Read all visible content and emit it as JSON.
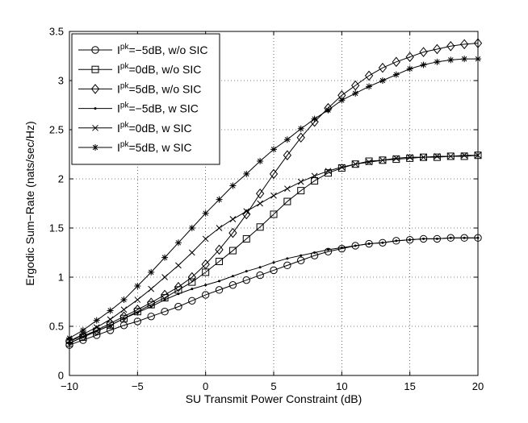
{
  "chart_data": {
    "type": "line",
    "xlabel": "SU Transmit Power Constraint (dB)",
    "ylabel": "Ergodic Sum−Rate (nats/sec/Hz)",
    "xlim": [
      -10,
      20
    ],
    "ylim": [
      0,
      3.5
    ],
    "xticks": [
      -10,
      -5,
      0,
      5,
      10,
      15,
      20
    ],
    "xtick_labels": [
      "−10",
      "−5",
      "0",
      "5",
      "10",
      "15",
      "20"
    ],
    "yticks": [
      0,
      0.5,
      1,
      1.5,
      2,
      2.5,
      3,
      3.5
    ],
    "ytick_labels": [
      "0",
      "0.5",
      "1",
      "1.5",
      "2",
      "2.5",
      "3",
      "3.5"
    ],
    "grid": true,
    "legend_position": "top-left",
    "x": [
      -10,
      -9,
      -8,
      -7,
      -6,
      -5,
      -4,
      -3,
      -2,
      -1,
      0,
      1,
      2,
      3,
      4,
      5,
      6,
      7,
      8,
      9,
      10,
      11,
      12,
      13,
      14,
      15,
      16,
      17,
      18,
      19,
      20
    ],
    "series": [
      {
        "name": "I",
        "sup": "pk",
        "suffix": "=−5dB, w/o SIC",
        "marker": "circle",
        "values": [
          0.31,
          0.36,
          0.41,
          0.46,
          0.51,
          0.55,
          0.6,
          0.65,
          0.7,
          0.76,
          0.82,
          0.87,
          0.92,
          0.97,
          1.02,
          1.07,
          1.12,
          1.17,
          1.22,
          1.26,
          1.29,
          1.32,
          1.34,
          1.35,
          1.37,
          1.38,
          1.39,
          1.39,
          1.4,
          1.4,
          1.4
        ]
      },
      {
        "name": "I",
        "sup": "pk",
        "suffix": "=0dB, w/o SIC",
        "marker": "square",
        "values": [
          0.33,
          0.39,
          0.45,
          0.51,
          0.58,
          0.65,
          0.72,
          0.79,
          0.87,
          0.95,
          1.05,
          1.16,
          1.27,
          1.39,
          1.51,
          1.64,
          1.77,
          1.88,
          1.98,
          2.06,
          2.11,
          2.15,
          2.18,
          2.19,
          2.2,
          2.21,
          2.22,
          2.22,
          2.23,
          2.23,
          2.24
        ]
      },
      {
        "name": "I",
        "sup": "pk",
        "suffix": "=5dB, w/o SIC",
        "marker": "diamond",
        "values": [
          0.35,
          0.4,
          0.46,
          0.53,
          0.6,
          0.67,
          0.74,
          0.82,
          0.9,
          1.0,
          1.13,
          1.28,
          1.45,
          1.64,
          1.85,
          2.05,
          2.24,
          2.42,
          2.58,
          2.72,
          2.85,
          2.95,
          3.05,
          3.13,
          3.19,
          3.24,
          3.29,
          3.32,
          3.35,
          3.37,
          3.38
        ]
      },
      {
        "name": "I",
        "sup": "pk",
        "suffix": "=−5dB, w SIC",
        "marker": "dot",
        "values": [
          0.33,
          0.39,
          0.45,
          0.51,
          0.58,
          0.64,
          0.7,
          0.77,
          0.83,
          0.88,
          0.92,
          0.96,
          1.01,
          1.06,
          1.1,
          1.15,
          1.19,
          1.22,
          1.25,
          1.28,
          1.3,
          1.32,
          1.34,
          1.35,
          1.37,
          1.38,
          1.39,
          1.39,
          1.4,
          1.4,
          1.4
        ]
      },
      {
        "name": "I",
        "sup": "pk",
        "suffix": "=0dB, w SIC",
        "marker": "x",
        "values": [
          0.35,
          0.42,
          0.49,
          0.57,
          0.67,
          0.77,
          0.88,
          1.0,
          1.12,
          1.25,
          1.39,
          1.5,
          1.59,
          1.67,
          1.75,
          1.83,
          1.9,
          1.97,
          2.03,
          2.08,
          2.12,
          2.15,
          2.17,
          2.19,
          2.21,
          2.22,
          2.22,
          2.23,
          2.23,
          2.24,
          2.24
        ]
      },
      {
        "name": "I",
        "sup": "pk",
        "suffix": "=5dB, w SIC",
        "marker": "star",
        "values": [
          0.38,
          0.46,
          0.56,
          0.66,
          0.77,
          0.91,
          1.05,
          1.2,
          1.35,
          1.5,
          1.65,
          1.79,
          1.93,
          2.05,
          2.18,
          2.3,
          2.4,
          2.51,
          2.61,
          2.7,
          2.8,
          2.87,
          2.94,
          3.0,
          3.06,
          3.12,
          3.16,
          3.19,
          3.21,
          3.22,
          3.22
        ]
      }
    ]
  }
}
